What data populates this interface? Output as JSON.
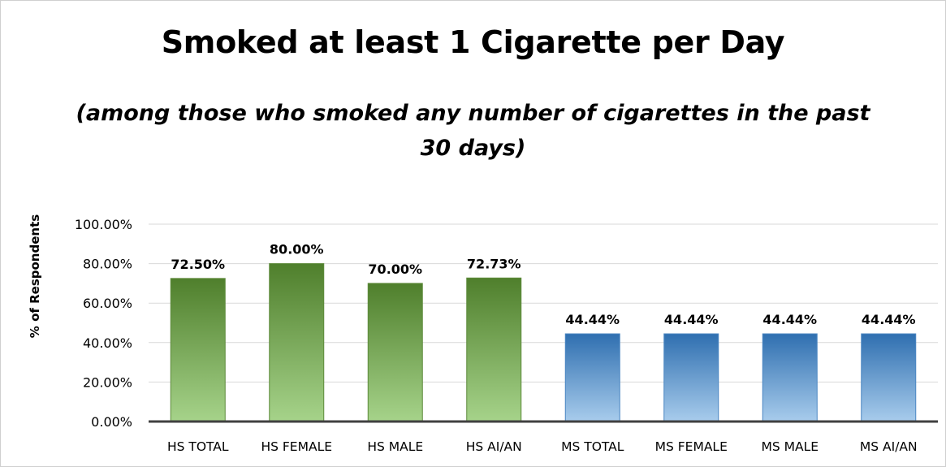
{
  "chart_data": {
    "type": "bar",
    "title": "Smoked at least 1 Cigarette per Day",
    "subtitle": "(among those who smoked any number of cigarettes in the past 30 days)",
    "xlabel": "",
    "ylabel": "% of Respondents",
    "ylim": [
      0,
      100
    ],
    "yticks": [
      "0.00%",
      "20.00%",
      "40.00%",
      "60.00%",
      "80.00%",
      "100.00%"
    ],
    "grid": true,
    "categories": [
      "HS TOTAL",
      "HS FEMALE",
      "HS MALE",
      "HS AI/AN",
      "MS TOTAL",
      "MS FEMALE",
      "MS MALE",
      "MS AI/AN"
    ],
    "values": [
      72.5,
      80.0,
      70.0,
      72.73,
      44.44,
      44.44,
      44.44,
      44.44
    ],
    "data_labels": [
      "72.50%",
      "80.00%",
      "70.00%",
      "72.73%",
      "44.44%",
      "44.44%",
      "44.44%",
      "44.44%"
    ],
    "bar_groups": [
      "HS",
      "HS",
      "HS",
      "HS",
      "MS",
      "MS",
      "MS",
      "MS"
    ],
    "colors": {
      "HS": {
        "top": "#4f7f2c",
        "bottom": "#a6d38a",
        "stroke": "#5d8a3a"
      },
      "MS": {
        "top": "#2f6fb0",
        "bottom": "#a8ccec",
        "stroke": "#4a86c2"
      },
      "grid": "#d9d9d9",
      "axis": "#404040"
    }
  }
}
